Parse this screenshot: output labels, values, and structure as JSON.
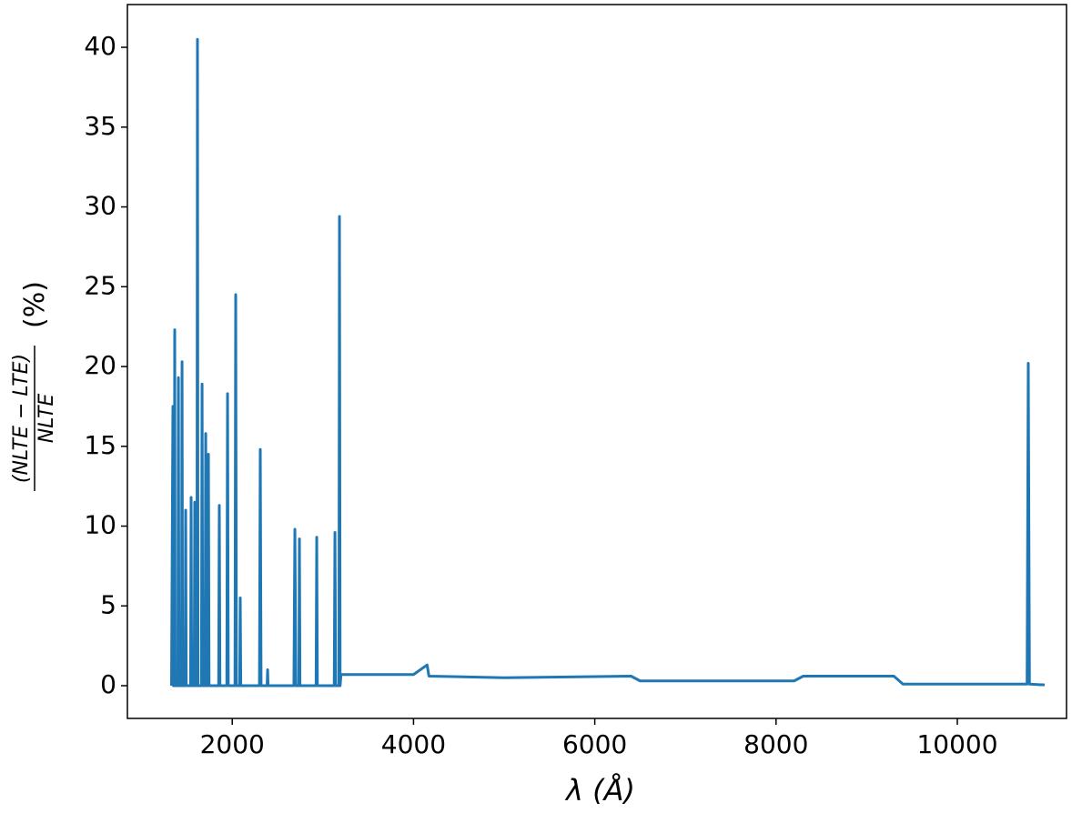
{
  "chart_data": {
    "type": "line",
    "x_label": "λ (Å)",
    "y_label": {
      "numerator": "(NLTE − LTE)",
      "denominator": "NLTE",
      "unit": "(%)"
    },
    "color": "#1f77b4",
    "x": [
      1330,
      1345,
      1350,
      1360,
      1365,
      1370,
      1400,
      1406,
      1412,
      1440,
      1446,
      1452,
      1480,
      1486,
      1492,
      1540,
      1546,
      1552,
      1580,
      1586,
      1592,
      1610,
      1616,
      1622,
      1660,
      1667,
      1674,
      1700,
      1707,
      1714,
      1730,
      1737,
      1744,
      1850,
      1857,
      1864,
      1940,
      1948,
      1956,
      2030,
      2038,
      2046,
      2082,
      2088,
      2094,
      2300,
      2309,
      2318,
      2385,
      2390,
      2395,
      2680,
      2691,
      2702,
      2735,
      2741,
      2747,
      2925,
      2932,
      2939,
      3125,
      3133,
      3141,
      3177,
      3183,
      3190,
      3200,
      4000,
      4150,
      4170,
      5000,
      6400,
      6500,
      8200,
      8300,
      9300,
      9400,
      10770,
      10783,
      10796,
      10964
    ],
    "values": [
      0,
      17.5,
      0,
      0,
      22.3,
      0,
      0,
      19.3,
      0,
      0,
      20.3,
      0,
      0,
      11,
      0,
      0,
      11.8,
      0,
      0,
      11.5,
      0,
      0,
      40.5,
      0,
      0,
      18.9,
      0,
      0,
      15.8,
      0,
      0,
      14.5,
      0,
      0,
      11.3,
      0,
      0,
      18.3,
      0,
      0,
      24.5,
      0,
      0,
      5.5,
      0,
      0,
      14.8,
      0,
      0,
      1,
      0,
      0,
      9.8,
      0,
      0,
      9.2,
      0,
      0,
      9.3,
      0,
      0,
      9.6,
      0,
      0,
      29.4,
      0,
      0.7,
      0.7,
      1.3,
      0.6,
      0.5,
      0.6,
      0.3,
      0.3,
      0.6,
      0.6,
      0.1,
      0.1,
      20.2,
      0.1,
      0.05
    ],
    "xlim": [
      843,
      11205
    ],
    "ylim": [
      -2.05,
      42.68
    ],
    "xticks": [
      2000,
      4000,
      6000,
      8000,
      10000
    ],
    "yticks": [
      0,
      5,
      10,
      15,
      20,
      25,
      30,
      35,
      40
    ]
  }
}
